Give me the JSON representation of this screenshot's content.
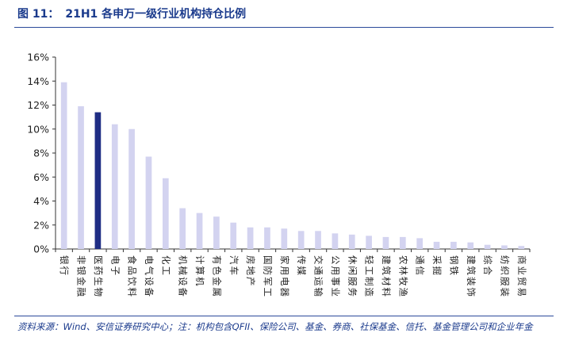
{
  "figure": {
    "label": "图 11：",
    "title": "21H1 各申万一级行业机构持仓比例"
  },
  "source": "资料来源：Wind、安信证券研究中心；注：机构包含QFII、保险公司、基金、券商、社保基金、信托、基金管理公司和企业年金",
  "colors": {
    "bar": "#d3d3f0",
    "highlight": "#1f2d84",
    "axis": "#333333",
    "title": "#1a3a8c"
  },
  "chart_data": {
    "type": "bar",
    "title": "",
    "xlabel": "",
    "ylabel": "",
    "ylim": [
      0,
      16
    ],
    "yticks": [
      "0%",
      "2%",
      "4%",
      "6%",
      "8%",
      "10%",
      "12%",
      "14%",
      "16%"
    ],
    "grid": false,
    "legend": "none",
    "highlight_index": 2,
    "categories": [
      "银行",
      "非银金融",
      "医药生物",
      "电子",
      "食品饮料",
      "电气设备",
      "化工",
      "机械设备",
      "计算机",
      "有色金属",
      "汽车",
      "房地产",
      "国防军工",
      "家用电器",
      "传媒",
      "交通运输",
      "公用事业",
      "休闲服务",
      "轻工制造",
      "建筑材料",
      "农林牧渔",
      "通信",
      "采掘",
      "钢铁",
      "建筑装饰",
      "综合",
      "纺织服装",
      "商业贸易"
    ],
    "values": [
      13.9,
      11.9,
      11.4,
      10.4,
      10.0,
      7.7,
      5.9,
      3.4,
      3.0,
      2.7,
      2.2,
      1.8,
      1.8,
      1.7,
      1.5,
      1.5,
      1.3,
      1.2,
      1.1,
      1.0,
      1.0,
      0.9,
      0.6,
      0.6,
      0.55,
      0.35,
      0.3,
      0.25
    ]
  }
}
